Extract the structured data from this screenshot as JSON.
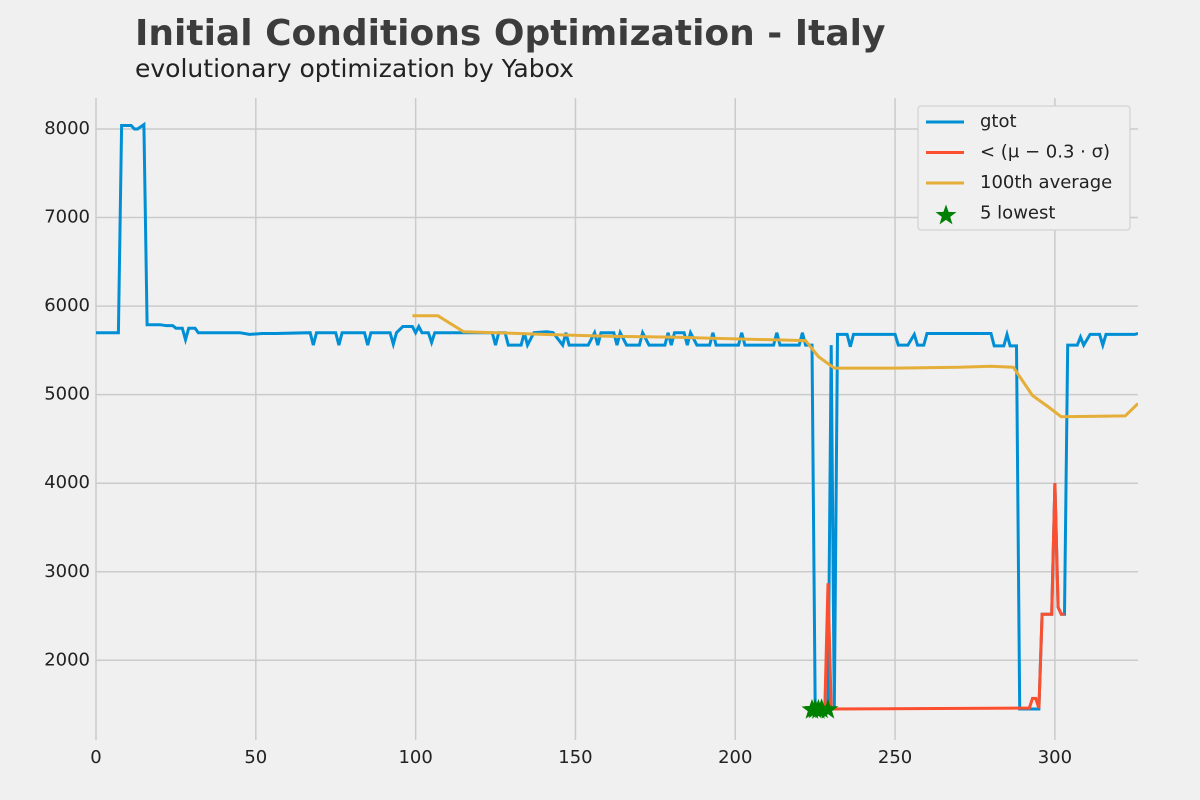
{
  "chart_data": {
    "type": "line",
    "title": "Initial Conditions Optimization - Italy",
    "subtitle": "evolutionary optimization by Yabox",
    "xlim": [
      0,
      326
    ],
    "ylim": [
      1100,
      8350
    ],
    "xticks": [
      0,
      50,
      100,
      150,
      200,
      250,
      300
    ],
    "yticks": [
      2000,
      3000,
      4000,
      5000,
      6000,
      7000,
      8000
    ],
    "grid": true,
    "legend": "upper right",
    "series": [
      {
        "name": "gtot",
        "type": "line",
        "color": "#008fd5",
        "x": [
          0,
          7,
          8,
          11,
          12,
          13,
          15,
          16,
          20,
          22,
          24,
          25,
          27,
          28,
          29,
          31,
          32,
          45,
          48,
          52,
          56,
          67,
          68,
          69,
          75,
          76,
          77,
          84,
          85,
          86,
          92,
          93,
          94,
          96,
          99,
          100,
          101,
          102,
          104,
          105,
          106,
          124,
          125,
          126,
          128,
          129,
          133,
          134,
          135,
          137,
          141,
          143,
          146,
          147,
          148,
          154,
          156,
          157,
          158,
          162,
          163,
          164,
          166,
          170,
          171,
          173,
          178,
          179,
          180,
          181,
          184,
          185,
          186,
          188,
          192,
          193,
          194,
          201,
          202,
          203,
          212,
          213,
          214,
          220,
          221,
          222,
          224,
          225,
          229,
          230,
          231,
          232,
          235,
          236,
          237,
          250,
          251,
          254,
          256,
          257,
          259,
          260,
          280,
          281,
          284,
          285,
          286,
          288,
          289,
          295,
          296,
          299,
          300,
          301,
          302,
          303,
          304,
          307,
          308,
          309,
          311,
          314,
          315,
          316,
          325,
          326
        ],
        "values": [
          5700,
          5700,
          8040,
          8040,
          8000,
          8000,
          8050,
          5790,
          5790,
          5780,
          5780,
          5750,
          5750,
          5620,
          5750,
          5750,
          5700,
          5700,
          5680,
          5690,
          5690,
          5700,
          5560,
          5700,
          5700,
          5560,
          5700,
          5700,
          5560,
          5700,
          5700,
          5570,
          5700,
          5770,
          5770,
          5700,
          5770,
          5700,
          5700,
          5590,
          5700,
          5700,
          5560,
          5700,
          5700,
          5560,
          5560,
          5700,
          5560,
          5700,
          5710,
          5700,
          5560,
          5700,
          5560,
          5560,
          5700,
          5560,
          5700,
          5700,
          5560,
          5700,
          5560,
          5560,
          5700,
          5560,
          5560,
          5700,
          5560,
          5700,
          5700,
          5560,
          5700,
          5560,
          5560,
          5700,
          5560,
          5560,
          5700,
          5560,
          5560,
          5700,
          5560,
          5560,
          5700,
          5560,
          5560,
          1450,
          1450,
          5560,
          1450,
          5680,
          5680,
          5540,
          5680,
          5680,
          5560,
          5560,
          5680,
          5560,
          5560,
          5690,
          5690,
          5550,
          5550,
          5680,
          5550,
          5550,
          1450,
          1450,
          2520,
          2520,
          4000,
          2600,
          2520,
          2520,
          5560,
          5560,
          5650,
          5560,
          5680,
          5680,
          5560,
          5680,
          5680,
          5690
        ]
      },
      {
        "name": "< (μ − 0.3 · σ)",
        "type": "line",
        "color": "#fc4f30",
        "x": [
          224,
          226,
          227,
          228,
          229,
          230,
          288,
          292,
          293,
          294,
          295,
          296,
          299,
          300,
          301,
          302,
          303
        ],
        "values": [
          1450,
          1450,
          1500,
          1450,
          2870,
          1450,
          1460,
          1460,
          1570,
          1570,
          1460,
          2520,
          2520,
          4000,
          2600,
          2520,
          2520
        ]
      },
      {
        "name": "100th average",
        "type": "line",
        "color": "#e5ae38",
        "x": [
          99,
          107,
          115,
          125,
          140,
          160,
          180,
          200,
          222,
          226,
          231,
          250,
          270,
          280,
          287,
          293,
          298,
          302,
          322,
          326
        ],
        "values": [
          5890,
          5890,
          5710,
          5700,
          5680,
          5660,
          5650,
          5630,
          5610,
          5430,
          5300,
          5300,
          5310,
          5320,
          5310,
          4990,
          4860,
          4750,
          4760,
          4900
        ]
      },
      {
        "name": "5 lowest",
        "type": "scatter",
        "color": "#008000",
        "x": [
          224,
          225,
          226,
          227,
          229
        ],
        "values": [
          1440,
          1445,
          1440,
          1448,
          1442
        ]
      }
    ]
  }
}
